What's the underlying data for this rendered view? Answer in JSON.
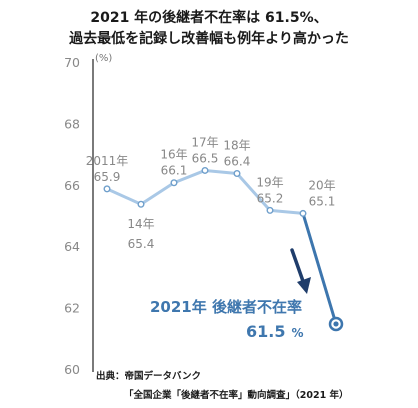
{
  "chart_data": {
    "type": "line",
    "title_lines": [
      "2021 年の後継者不在率は 61.5%、",
      "過去最低を記録し改善幅も例年より高かった"
    ],
    "unit": "(%)",
    "ylim": [
      60,
      70
    ],
    "yticks": [
      60,
      62,
      64,
      66,
      68,
      70
    ],
    "grid": false,
    "series": [
      {
        "points": [
          {
            "x": "2011年",
            "y": 65.9
          },
          {
            "x": "14年",
            "y": 65.4
          },
          {
            "x": "16年",
            "y": 66.1
          },
          {
            "x": "17年",
            "y": 66.5
          },
          {
            "x": "18年",
            "y": 66.4
          },
          {
            "x": "19年",
            "y": 65.2
          },
          {
            "x": "20年",
            "y": 65.1
          },
          {
            "x": "21年",
            "y": 61.5
          }
        ]
      }
    ],
    "highlight": {
      "label": "2021年 後継者不在率",
      "value": "61.5",
      "unit": "%"
    },
    "source_lines": [
      "出典：帝国データバンク",
      "「全国企業「後継者不在率」動向調査」（2021 年）"
    ],
    "colors": {
      "line": "#a9c8e6",
      "line_2021": "#3d76ae",
      "arrow": "#1f3d6b",
      "highlight_text": "#3f77ae"
    }
  }
}
